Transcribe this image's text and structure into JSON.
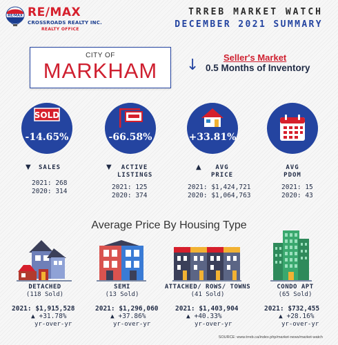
{
  "header": {
    "brand": {
      "name": "RE/MAX",
      "brokerage": "CROSSROADS REALTY INC.",
      "tagline": "REALTY OFFICE",
      "colors": {
        "red": "#d61f2c",
        "blue": "#1a3d8f"
      }
    },
    "title": "TRREB MARKET WATCH",
    "subtitle": "DECEMBER 2021 SUMMARY"
  },
  "city": {
    "label": "CITY OF",
    "name": "MARKHAM"
  },
  "market": {
    "type": "Seller's Market",
    "inventory": "0.5 Months of Inventory",
    "inventory_icon": "down-arrow-icon"
  },
  "kpis": [
    {
      "id": "sales",
      "icon": "sold-sign-icon",
      "value": "-14.65%",
      "trend": "down",
      "trend_glyph": "▼",
      "label1": "SALES",
      "label2": "",
      "line1": "2021: 268",
      "line2": "2020: 314"
    },
    {
      "id": "active",
      "icon": "for-sale-sign-icon",
      "value": "-66.58%",
      "trend": "down",
      "trend_glyph": "▼",
      "label1": "ACTIVE",
      "label2": "LISTINGS",
      "line1": "2021: 125",
      "line2": "2020: 374"
    },
    {
      "id": "price",
      "icon": "house-icon",
      "value": "+33.81%",
      "trend": "up",
      "trend_glyph": "▲",
      "label1": "AVG",
      "label2": "PRICE",
      "line1": "2021: $1,424,721",
      "line2": "2020: $1,064,763"
    },
    {
      "id": "pdom",
      "icon": "calendar-icon",
      "value": "",
      "trend": "none",
      "trend_glyph": "",
      "label1": "AVG",
      "label2": "PDOM",
      "line1": "2021: 15",
      "line2": "2020: 43"
    }
  ],
  "section_title": "Average Price By Housing Type",
  "housing": [
    {
      "id": "detached",
      "icon": "detached-house-icon",
      "name": "DETACHED",
      "sold": "(118 Sold)",
      "price": "2021: $1,915,528",
      "pct_glyph": "▲",
      "pct": "+31.78%",
      "yoy": "yr-over-yr"
    },
    {
      "id": "semi",
      "icon": "semi-house-icon",
      "name": "SEMI",
      "sold": "(13 Sold)",
      "price": "2021: $1,296,060",
      "pct_glyph": "▲",
      "pct": "+37.86%",
      "yoy": "yr-over-yr"
    },
    {
      "id": "attached",
      "icon": "townhouse-icon",
      "name": "ATTACHED/ ROWS/ TOWNS",
      "sold": "(41 Sold)",
      "price": "2021: $1,403,904",
      "pct_glyph": "▲",
      "pct": "+40.33%",
      "yoy": "yr-over-yr"
    },
    {
      "id": "condo",
      "icon": "condo-building-icon",
      "name": "CONDO APT",
      "sold": "(65 Sold)",
      "price": "2021: $732,455",
      "pct_glyph": "▲",
      "pct": "+28.16%",
      "yoy": "yr-over-yr"
    }
  ],
  "source": "SOURCE:   www.trreb.ca/index.php/market-news/market-watch",
  "colors": {
    "accent_blue": "#2444a0",
    "accent_red": "#cf2030",
    "text": "#1f2a44"
  }
}
